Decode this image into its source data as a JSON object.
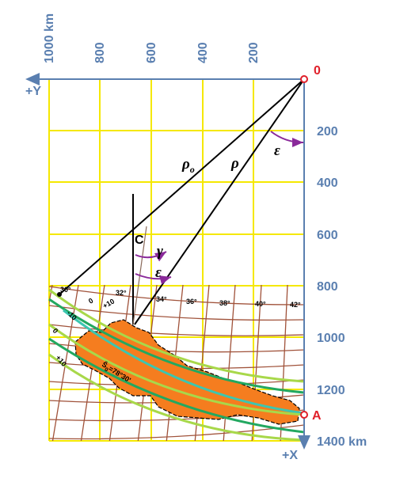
{
  "axes": {
    "top_ticks": [
      "1000 km",
      "800",
      "600",
      "400",
      "200"
    ],
    "right_ticks": [
      "200",
      "400",
      "600",
      "800",
      "1000",
      "1200",
      "1400 km"
    ],
    "origin": "0",
    "y_label": "+Y",
    "x_label": "+X",
    "point_a": "A"
  },
  "symbols": {
    "rho0": {
      "base": "ρ",
      "sub": "o"
    },
    "rho": "ρ",
    "epsilon_top": "ε",
    "c": "C",
    "gamma": "γ",
    "epsilon_low": "ε"
  },
  "meridian_labels": [
    "30°",
    "32°",
    "34°",
    "36°",
    "38°",
    "40°",
    "42°"
  ],
  "isoline_labels": [
    "0",
    "+10",
    "-10",
    "0",
    "+10"
  ],
  "standard_parallel": {
    "base": "Š",
    "sub": "0",
    "rest": "=78°30'"
  }
}
